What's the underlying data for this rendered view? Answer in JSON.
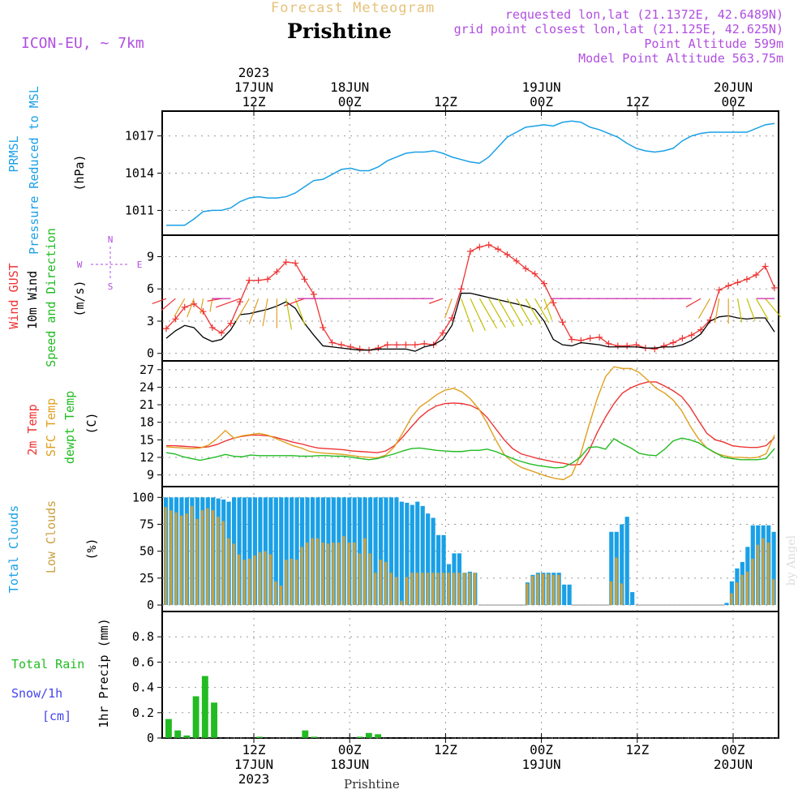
{
  "header": {
    "forecast_label": "Forecast Meteogram",
    "station": "Prishtine",
    "model": "ICON-EU, ~ 7km",
    "requested": "requested lon,lat (21.1372E, 42.6489N)",
    "grid_point": "grid point closest lon,lat (21.125E, 42.625N)",
    "point_altitude": "Point Altitude 599m",
    "model_altitude": "Model Point Altitude 563.75m"
  },
  "footer": {
    "station": "Prishtine",
    "watermark": "by Angel"
  },
  "colors": {
    "pressure": "#1aa0e6",
    "gust": "#ee3333",
    "wind": "#000000",
    "temp2m": "#ee3333",
    "sfc": "#e0a020",
    "dewpt": "#22bb22",
    "total_cloud": "#1aa0e6",
    "low_cloud": "#c8a040",
    "rain": "#22bb22",
    "snow": "#4444ee",
    "label_purple": "#b04ee0"
  },
  "time_axis": {
    "top_ticks": [
      {
        "h": 0,
        "lines": [
          "2023",
          "17JUN",
          "12Z"
        ]
      },
      {
        "h": 12,
        "lines": [
          "18JUN",
          "00Z"
        ]
      },
      {
        "h": 24,
        "lines": [
          "12Z"
        ]
      },
      {
        "h": 36,
        "lines": [
          "19JUN",
          "00Z"
        ]
      },
      {
        "h": 48,
        "lines": [
          "12Z"
        ]
      },
      {
        "h": 60,
        "lines": [
          "20JUN",
          "00Z"
        ]
      }
    ],
    "bottom_ticks": [
      {
        "h": 0,
        "lines": [
          "12Z",
          "17JUN",
          "2023"
        ]
      },
      {
        "h": 12,
        "lines": [
          "00Z",
          "18JUN"
        ]
      },
      {
        "h": 24,
        "lines": [
          "12Z"
        ]
      },
      {
        "h": 36,
        "lines": [
          "00Z",
          "19JUN"
        ]
      },
      {
        "h": 48,
        "lines": [
          "12Z"
        ]
      },
      {
        "h": 60,
        "lines": [
          "00Z",
          "20JUN"
        ]
      }
    ]
  },
  "chart_data": [
    {
      "type": "line",
      "title": "PRMSL Pressure Reduced to MSL",
      "ylabel": "(hPa)",
      "x_start_hours_from_17JUN12Z": -11,
      "x_step_hours": 1,
      "ylim": [
        1009,
        1019
      ],
      "yticks": [
        1011,
        1014,
        1017
      ],
      "series": [
        {
          "name": "PRMSL",
          "values": [
            1009.8,
            1009.8,
            1009.8,
            1010.3,
            1010.9,
            1011.0,
            1011.0,
            1011.2,
            1011.7,
            1012.0,
            1012.1,
            1012.0,
            1012.0,
            1012.1,
            1012.4,
            1012.9,
            1013.4,
            1013.5,
            1013.9,
            1014.3,
            1014.4,
            1014.2,
            1014.2,
            1014.5,
            1015.0,
            1015.3,
            1015.6,
            1015.7,
            1015.7,
            1015.8,
            1015.6,
            1015.3,
            1015.1,
            1014.9,
            1014.8,
            1015.3,
            1016.1,
            1016.9,
            1017.3,
            1017.7,
            1017.8,
            1017.9,
            1017.8,
            1018.1,
            1018.2,
            1018.1,
            1017.7,
            1017.5,
            1017.2,
            1016.9,
            1016.4,
            1016.0,
            1015.8,
            1015.7,
            1015.8,
            1016.0,
            1016.6,
            1017.0,
            1017.2,
            1017.3,
            1017.3,
            1017.3,
            1017.3,
            1017.3,
            1017.6,
            1017.9,
            1018.0
          ]
        }
      ]
    },
    {
      "type": "line",
      "title": "Wind GUST / 10m Wind Speed and Direction",
      "ylabel": "(m/s)",
      "ylim": [
        -0.7,
        11
      ],
      "yticks": [
        0,
        3,
        6,
        9
      ],
      "compass": {
        "north": "N",
        "south": "S",
        "east": "E",
        "west": "W"
      },
      "series": [
        {
          "name": "Wind GUST",
          "marker": "+",
          "values": [
            2.3,
            3.2,
            4.3,
            4.6,
            3.9,
            2.4,
            1.9,
            2.8,
            4.8,
            6.8,
            6.8,
            6.9,
            7.6,
            8.5,
            8.4,
            6.9,
            5.5,
            2.4,
            1.0,
            0.8,
            0.6,
            0.4,
            0.3,
            0.5,
            0.8,
            0.8,
            0.8,
            0.8,
            0.9,
            0.8,
            1.9,
            3.3,
            6.0,
            9.5,
            9.9,
            10.1,
            9.7,
            9.2,
            8.6,
            7.9,
            7.4,
            6.5,
            4.7,
            2.9,
            1.3,
            1.2,
            1.4,
            1.5,
            0.9,
            0.7,
            0.7,
            0.8,
            0.5,
            0.4,
            0.7,
            1.0,
            1.4,
            1.7,
            2.2,
            3.1,
            5.9,
            6.3,
            6.6,
            6.9,
            7.3,
            8.1,
            6.1
          ]
        },
        {
          "name": "10m Wind",
          "values": [
            1.4,
            2.1,
            2.6,
            2.4,
            1.5,
            1.1,
            1.3,
            2.2,
            3.6,
            3.7,
            3.9,
            4.1,
            4.4,
            4.8,
            4.2,
            2.8,
            1.7,
            0.7,
            0.6,
            0.5,
            0.4,
            0.3,
            0.3,
            0.4,
            0.4,
            0.4,
            0.4,
            0.2,
            0.6,
            0.8,
            1.3,
            2.6,
            5.6,
            5.6,
            5.4,
            5.2,
            5.0,
            4.8,
            4.6,
            4.4,
            4.1,
            3.0,
            1.3,
            0.8,
            0.7,
            1.0,
            0.9,
            0.8,
            0.6,
            0.6,
            0.6,
            0.6,
            0.5,
            0.5,
            0.6,
            0.6,
            0.8,
            1.2,
            1.8,
            3.0,
            3.4,
            3.5,
            3.3,
            3.2,
            3.3,
            3.3,
            2.0
          ]
        }
      ],
      "barb_dir_deg": [
        250,
        230,
        210,
        200,
        190,
        190,
        260,
        270,
        250,
        210,
        200,
        190,
        180,
        170,
        160,
        250,
        270,
        270,
        270,
        270,
        270,
        270,
        270,
        270,
        270,
        270,
        270,
        270,
        270,
        270,
        250,
        200,
        160,
        155,
        150,
        150,
        150,
        150,
        150,
        150,
        150,
        160,
        220,
        270,
        270,
        270,
        270,
        270,
        270,
        270,
        270,
        270,
        270,
        270,
        270,
        270,
        270,
        270,
        240,
        210,
        190,
        180,
        170,
        160,
        150,
        140,
        270
      ]
    },
    {
      "type": "line",
      "title": "2m Temp / SFC Temp / dewpt Temp",
      "ylabel": "(C)",
      "ylim": [
        7,
        28.5
      ],
      "yticks": [
        9,
        12,
        15,
        18,
        21,
        24,
        27
      ],
      "series": [
        {
          "name": "2m Temp",
          "values": [
            14.0,
            14.0,
            13.9,
            13.8,
            13.7,
            13.8,
            14.2,
            14.8,
            15.3,
            15.6,
            15.8,
            15.8,
            15.7,
            15.4,
            15.0,
            14.6,
            14.3,
            13.9,
            13.6,
            13.5,
            13.4,
            13.3,
            13.1,
            13.0,
            12.9,
            12.8,
            13.1,
            14.0,
            15.5,
            17.2,
            18.8,
            20.0,
            20.8,
            21.2,
            21.3,
            21.2,
            20.9,
            20.2,
            18.8,
            16.9,
            15.0,
            13.5,
            12.6,
            12.2,
            11.8,
            11.5,
            11.2,
            11.0,
            10.7,
            10.8,
            13.0,
            16.2,
            18.9,
            21.2,
            23.0,
            23.9,
            24.5,
            24.9,
            24.9,
            24.2,
            23.4,
            22.4,
            20.6,
            18.3,
            16.1,
            15.0,
            14.6,
            14.0,
            13.8,
            13.7,
            13.7,
            14.0,
            15.4
          ]
        },
        {
          "name": "SFC Temp",
          "values": [
            13.8,
            13.7,
            13.6,
            13.5,
            13.6,
            14.1,
            15.2,
            16.6,
            15.3,
            15.7,
            15.9,
            16.1,
            15.8,
            15.2,
            14.6,
            14.0,
            13.6,
            13.0,
            12.8,
            12.7,
            12.6,
            12.5,
            12.3,
            12.1,
            12.0,
            11.9,
            12.4,
            13.8,
            16.2,
            18.8,
            20.6,
            21.6,
            22.7,
            23.5,
            23.8,
            23.2,
            22.0,
            20.3,
            17.8,
            15.0,
            12.5,
            11.2,
            10.3,
            9.8,
            9.3,
            8.8,
            8.4,
            8.2,
            9.0,
            12.3,
            17.3,
            22.0,
            25.8,
            27.5,
            27.2,
            27.2,
            26.5,
            25.2,
            23.8,
            23.0,
            21.8,
            20.0,
            17.4,
            15.2,
            13.6,
            12.7,
            12.3,
            12.0,
            12.0,
            11.9,
            12.0,
            12.6,
            15.8
          ]
        },
        {
          "name": "dewpt Temp",
          "values": [
            12.8,
            12.6,
            12.1,
            11.8,
            11.5,
            11.8,
            12.1,
            12.5,
            12.2,
            12.1,
            12.4,
            12.3,
            12.3,
            12.3,
            12.3,
            12.3,
            12.2,
            12.2,
            12.3,
            12.3,
            12.2,
            12.2,
            12.0,
            11.8,
            11.6,
            11.8,
            12.2,
            12.6,
            13.1,
            13.5,
            13.6,
            13.4,
            13.2,
            13.1,
            13.0,
            13.0,
            13.2,
            13.2,
            13.4,
            13.0,
            12.4,
            11.8,
            11.3,
            10.9,
            10.6,
            10.4,
            10.2,
            10.3,
            11.0,
            12.0,
            13.7,
            13.8,
            13.4,
            15.2,
            14.3,
            13.6,
            12.7,
            12.4,
            12.3,
            13.4,
            14.8,
            15.3,
            15.0,
            14.5,
            13.6,
            12.8,
            12.0,
            11.8,
            11.6,
            11.6,
            11.6,
            11.8,
            13.5
          ]
        }
      ]
    },
    {
      "type": "bar",
      "title": "Total Clouds / Low Clouds",
      "ylabel": "(%)",
      "ylim": [
        -6,
        110
      ],
      "yticks": [
        0,
        25,
        50,
        75,
        100
      ],
      "series": [
        {
          "name": "Total Clouds",
          "values": [
            100,
            100,
            100,
            100,
            100,
            100,
            100,
            100,
            100,
            100,
            99,
            98,
            96,
            100,
            100,
            100,
            100,
            100,
            100,
            100,
            100,
            100,
            100,
            100,
            100,
            100,
            100,
            100,
            100,
            100,
            100,
            100,
            100,
            100,
            100,
            100,
            100,
            100,
            100,
            100,
            100,
            100,
            100,
            100,
            100,
            96,
            95,
            93,
            96,
            92,
            85,
            81,
            65,
            65,
            38,
            48,
            48,
            30,
            31,
            30,
            0,
            0,
            0,
            0,
            0,
            0,
            0,
            0,
            0,
            21,
            28,
            30,
            30,
            30,
            30,
            30,
            19,
            19,
            0,
            0,
            0,
            0,
            0,
            0,
            0,
            68,
            68,
            75,
            82,
            12,
            0,
            0,
            0,
            0,
            0,
            0,
            0,
            0,
            0,
            0,
            0,
            0,
            0,
            0,
            0,
            0,
            0,
            2,
            22,
            34,
            40,
            54,
            74,
            74,
            74,
            74,
            68
          ]
        },
        {
          "name": "Low Clouds",
          "values": [
            91,
            88,
            86,
            83,
            85,
            92,
            80,
            88,
            90,
            88,
            82,
            78,
            62,
            57,
            47,
            42,
            43,
            46,
            49,
            50,
            47,
            22,
            18,
            42,
            43,
            42,
            54,
            58,
            62,
            62,
            58,
            57,
            58,
            58,
            64,
            58,
            58,
            48,
            62,
            48,
            30,
            42,
            40,
            30,
            26,
            4,
            26,
            30,
            30,
            30,
            30,
            30,
            30,
            30,
            30,
            30,
            30,
            30,
            30,
            30,
            0,
            0,
            0,
            0,
            0,
            0,
            0,
            0,
            0,
            20,
            27,
            29,
            29,
            29,
            28,
            28,
            0,
            0,
            0,
            0,
            0,
            0,
            0,
            0,
            0,
            22,
            44,
            20,
            0,
            0,
            0,
            0,
            0,
            0,
            0,
            0,
            0,
            0,
            0,
            0,
            0,
            0,
            0,
            0,
            0,
            0,
            0,
            0,
            11,
            21,
            28,
            31,
            43,
            56,
            62,
            58,
            24
          ]
        }
      ]
    },
    {
      "type": "bar",
      "title": "Total Rain / Snow/1h",
      "ylabel": "1hr Precip (mm)",
      "units_snow": "[cm]",
      "ylim": [
        0,
        1.0
      ],
      "yticks": [
        0,
        0.2,
        0.4,
        0.6,
        0.8
      ],
      "series": [
        {
          "name": "Total Rain",
          "values": [
            0.15,
            0.06,
            0.02,
            0.33,
            0.49,
            0.28,
            0,
            0,
            0,
            0,
            0.01,
            0,
            0,
            0,
            0,
            0.06,
            0.01,
            0,
            0,
            0,
            0,
            0.01,
            0.04,
            0.03,
            0,
            0,
            0,
            0,
            0,
            0,
            0,
            0,
            0,
            0,
            0,
            0,
            0,
            0,
            0,
            0,
            0,
            0,
            0,
            0,
            0,
            0,
            0,
            0,
            0,
            0,
            0,
            0,
            0,
            0,
            0,
            0,
            0,
            0,
            0,
            0,
            0,
            0,
            0,
            0,
            0,
            0,
            0
          ]
        }
      ]
    }
  ]
}
